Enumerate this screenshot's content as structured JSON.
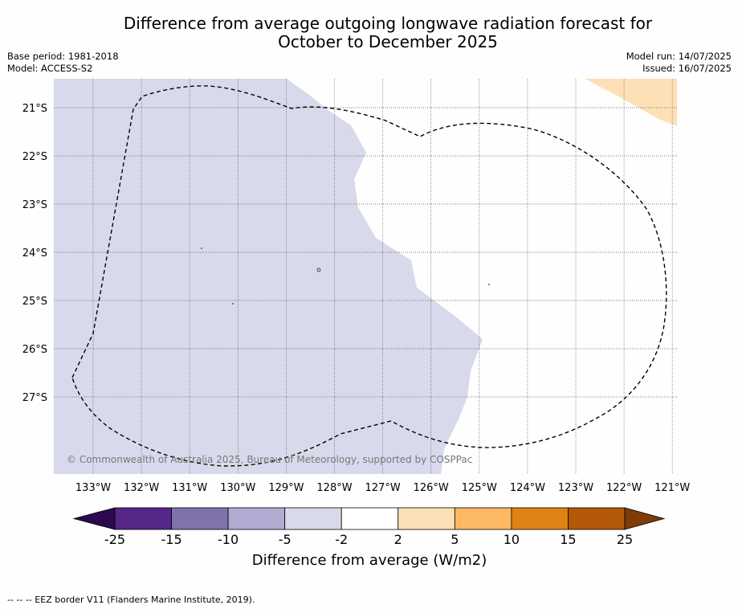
{
  "header": {
    "title_line1": "Difference from average outgoing longwave radiation forecast for",
    "title_line2": "October to December 2025",
    "base_period": "Base period: 1981-2018",
    "model": "Model: ACCESS-S2",
    "model_run": "Model run: 14/07/2025",
    "issued": "Issued: 16/07/2025"
  },
  "map": {
    "lat_labels": [
      "21°S",
      "22°S",
      "23°S",
      "24°S",
      "25°S",
      "26°S",
      "27°S"
    ],
    "lon_labels": [
      "133°W",
      "132°W",
      "131°W",
      "130°W",
      "129°W",
      "128°W",
      "127°W",
      "126°W",
      "125°W",
      "124°W",
      "123°W",
      "122°W",
      "121°W"
    ],
    "gridlines": true,
    "copyright": "© Commonwealth of Australia 2025, Bureau of Meteorology, supported by COSPPac"
  },
  "legend": {
    "ticks": [
      "-25",
      "-15",
      "-10",
      "-5",
      "-2",
      "2",
      "5",
      "10",
      "15",
      "25"
    ],
    "label": "Difference from average (W/m2)",
    "colors": {
      "below_min": "#2d0a4e",
      "bins": [
        "#542788",
        "#8073ac",
        "#b2abd2",
        "#d8daeb",
        "#ffffff",
        "#fee0b6",
        "#fdb863",
        "#e08214",
        "#b35806"
      ],
      "above_max": "#7f3b08"
    }
  },
  "footer": {
    "eez_note": "--  --  -- EEZ border V11 (Flanders Marine Institute, 2019)."
  }
}
